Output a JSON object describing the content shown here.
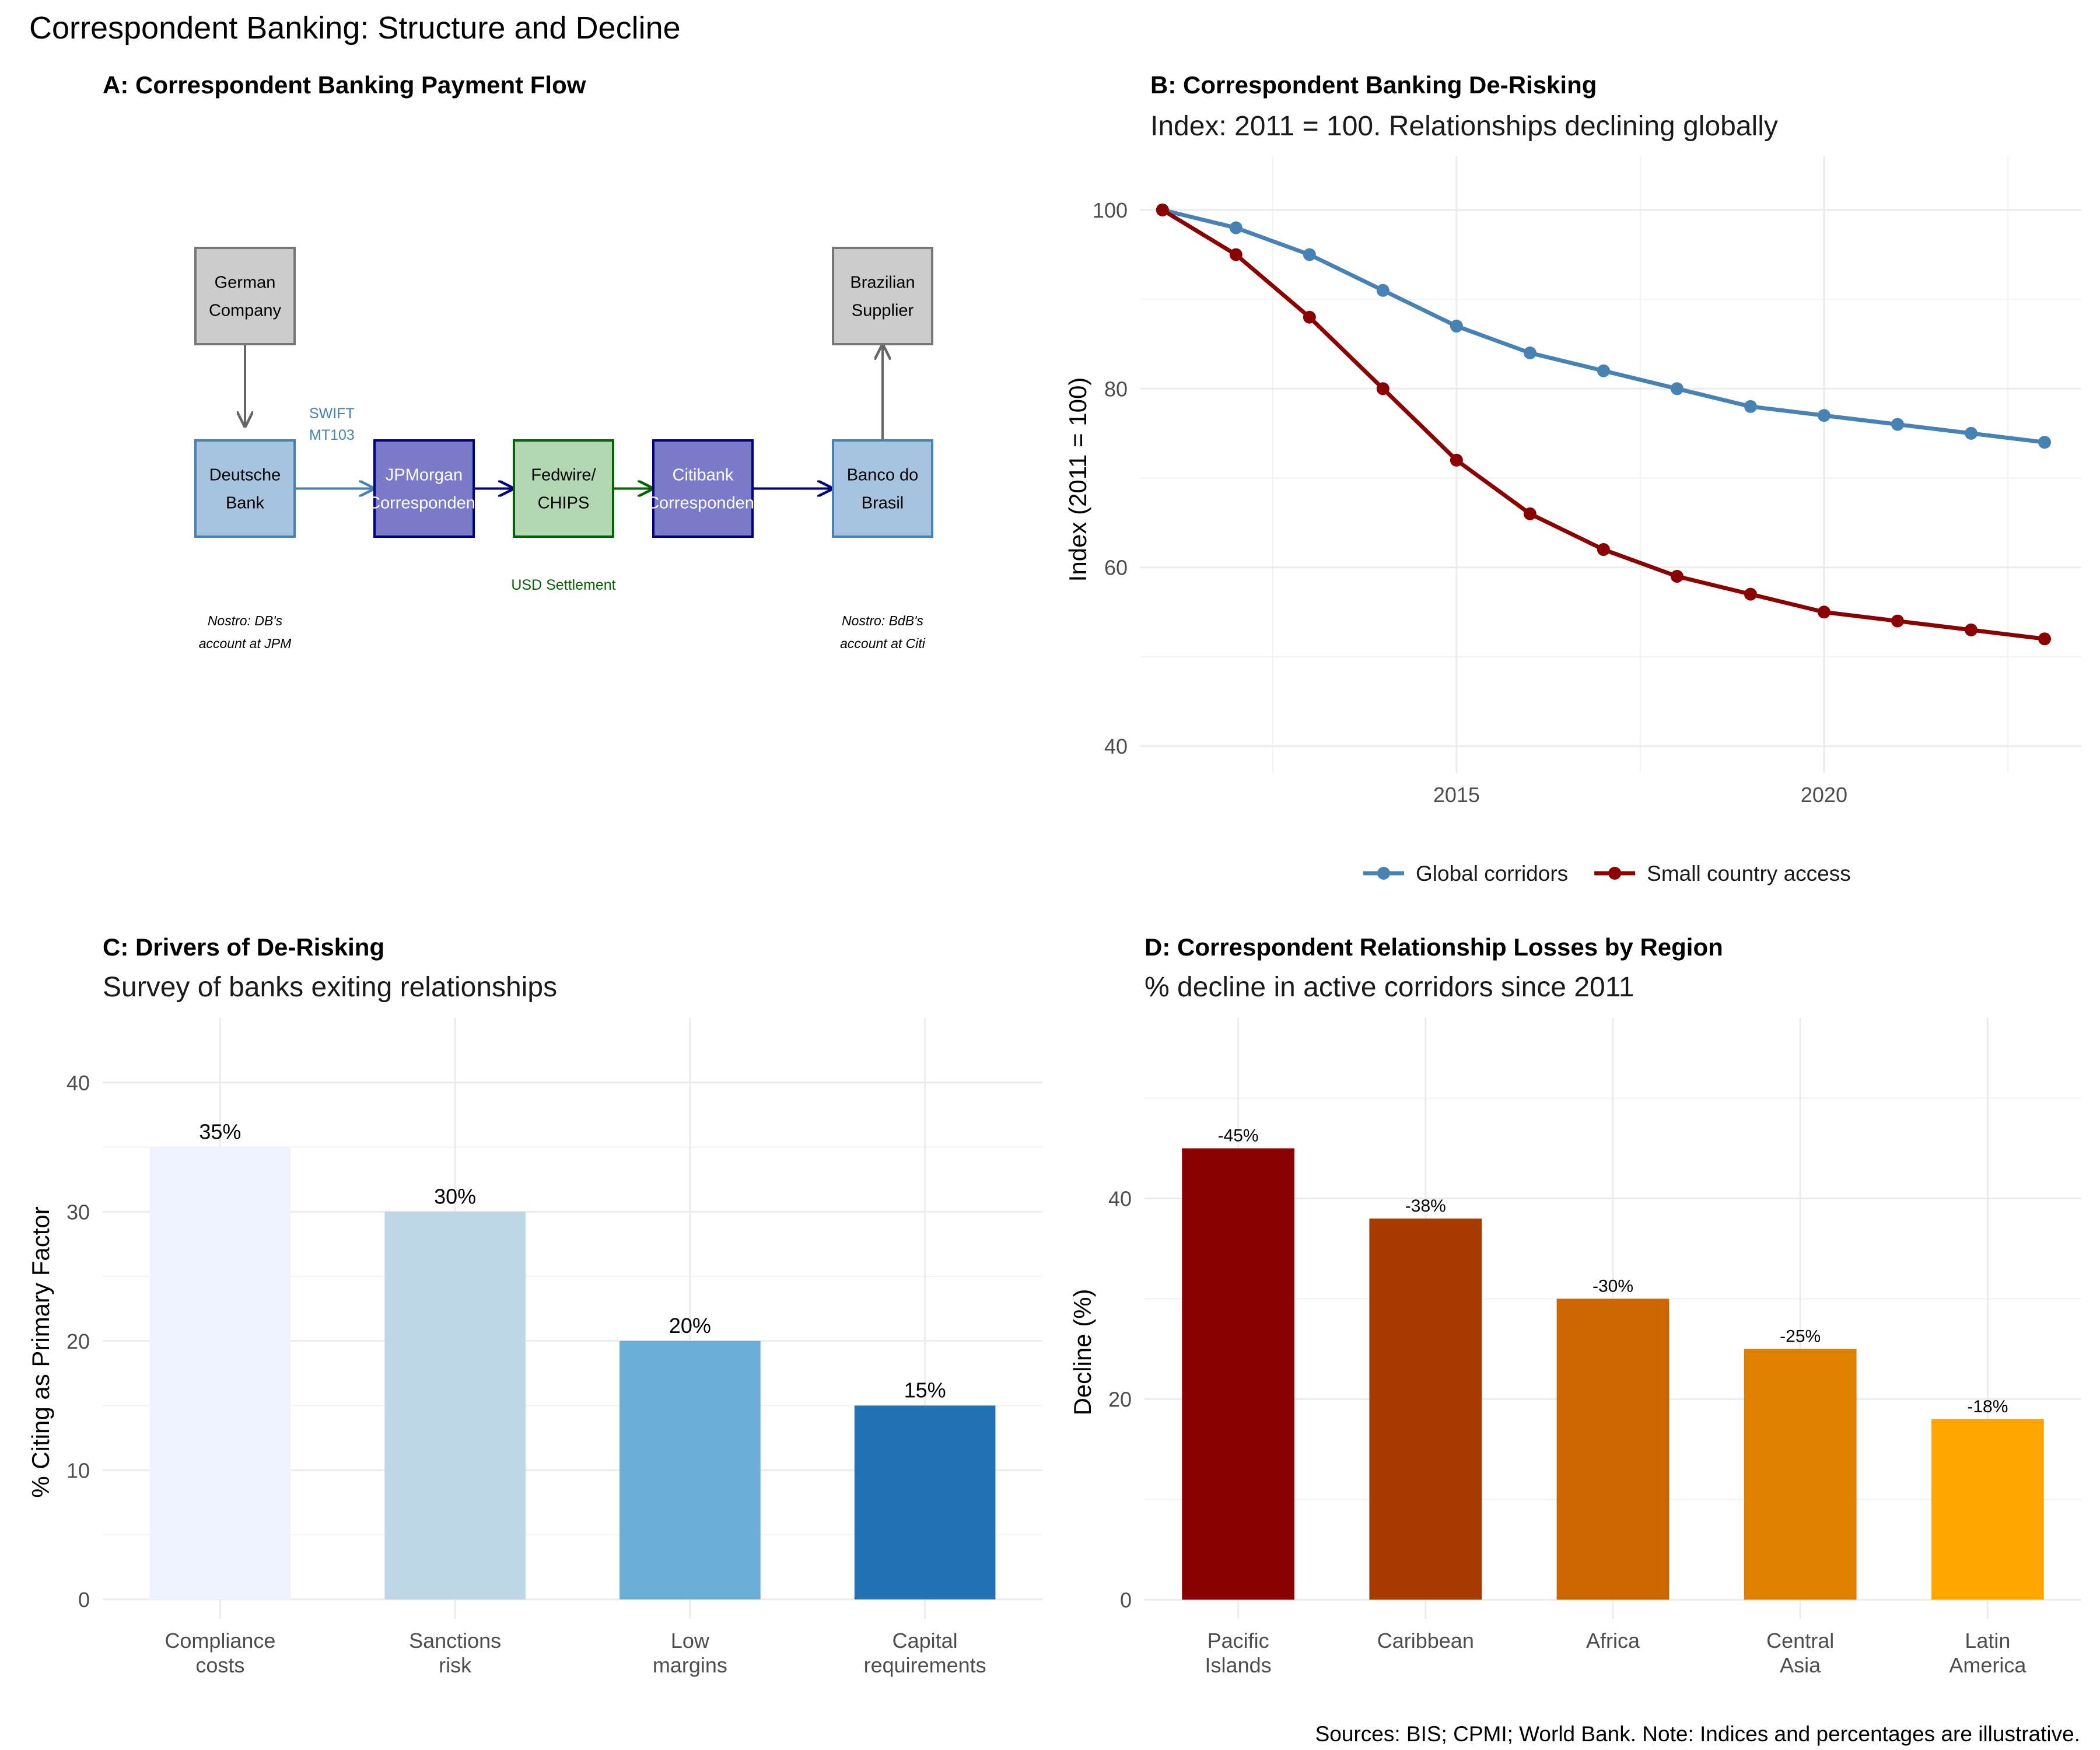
{
  "figure": {
    "title": "Correspondent Banking: Structure and Decline",
    "caption": "Sources: BIS; CPMI; World Bank. Note: Indices and percentages are illustrative."
  },
  "panel_a": {
    "title": "A: Correspondent Banking Payment Flow",
    "nodes": [
      {
        "id": "german",
        "lines": [
          "German",
          "Company"
        ],
        "fill": "#cccccc",
        "stroke": "#777777",
        "text_color": "#000000"
      },
      {
        "id": "brazilian",
        "lines": [
          "Brazilian",
          "Supplier"
        ],
        "fill": "#cccccc",
        "stroke": "#777777",
        "text_color": "#000000"
      },
      {
        "id": "deutsche",
        "lines": [
          "Deutsche",
          "Bank"
        ],
        "fill": "#a6c3df",
        "stroke": "#4682b4",
        "text_color": "#000000"
      },
      {
        "id": "jpmorgan",
        "lines": [
          "JPMorgan",
          "Correspondent"
        ],
        "fill": "#7b7bc9",
        "stroke": "#000080",
        "text_color": "#ffffff"
      },
      {
        "id": "fedwire",
        "lines": [
          "Fedwire/",
          "CHIPS"
        ],
        "fill": "#b3d6b3",
        "stroke": "#006400",
        "text_color": "#000000"
      },
      {
        "id": "citibank",
        "lines": [
          "Citibank",
          "Correspondent"
        ],
        "fill": "#7b7bc9",
        "stroke": "#000080",
        "text_color": "#ffffff"
      },
      {
        "id": "banco",
        "lines": [
          "Banco do",
          "Brasil"
        ],
        "fill": "#a6c3df",
        "stroke": "#4682b4",
        "text_color": "#000000"
      }
    ],
    "swift_label": [
      "SWIFT",
      "MT103"
    ],
    "settlement_label": "USD Settlement",
    "nostro_left": [
      "Nostro: DB's",
      "account at JPM"
    ],
    "nostro_right": [
      "Nostro: BdB's",
      "account at Citi"
    ],
    "colors": {
      "swift": "#4682b4",
      "navy": "#000080",
      "green": "#006400",
      "gray_arrow": "#666666"
    }
  },
  "chart_data": [
    {
      "type": "line",
      "title": "B: Correspondent Banking De-Risking",
      "subtitle": "Index: 2011 = 100. Relationships declining globally",
      "xlabel": "",
      "ylabel": "Index (2011 = 100)",
      "x": [
        2011,
        2012,
        2013,
        2014,
        2015,
        2016,
        2017,
        2018,
        2019,
        2020,
        2021,
        2022,
        2023
      ],
      "series": [
        {
          "name": "Global corridors",
          "color": "#4682b4",
          "values": [
            100,
            98,
            95,
            91,
            87,
            84,
            82,
            80,
            78,
            77,
            76,
            75,
            74
          ]
        },
        {
          "name": "Small country access",
          "color": "#8b0000",
          "values": [
            100,
            95,
            88,
            80,
            72,
            66,
            62,
            59,
            57,
            55,
            54,
            53,
            52
          ]
        }
      ],
      "xlim": [
        2010.7,
        2023.5
      ],
      "ylim": [
        37,
        106
      ],
      "xticks": [
        2015,
        2020
      ],
      "yticks": [
        40,
        60,
        80,
        100
      ],
      "legend_position": "bottom",
      "grid": true
    },
    {
      "type": "bar",
      "title": "C: Drivers of De-Risking",
      "subtitle": "Survey of banks exiting relationships",
      "xlabel": "",
      "ylabel": "% Citing as Primary Factor",
      "categories": [
        [
          "Compliance",
          "costs"
        ],
        [
          "Sanctions",
          "risk"
        ],
        [
          "Low",
          "margins"
        ],
        [
          "Capital",
          "requirements"
        ]
      ],
      "values": [
        35,
        30,
        20,
        15
      ],
      "value_labels": [
        "35%",
        "30%",
        "20%",
        "15%"
      ],
      "colors": [
        "#eff3ff",
        "#bdd7e7",
        "#6baed6",
        "#2171b5"
      ],
      "ylim": [
        -1.5,
        45
      ],
      "yticks": [
        0,
        10,
        20,
        30,
        40
      ],
      "grid": true
    },
    {
      "type": "bar",
      "title": "D: Correspondent Relationship Losses by Region",
      "subtitle": "% decline in active corridors since 2011",
      "xlabel": "",
      "ylabel": "Decline (%)",
      "categories": [
        [
          "Pacific",
          "Islands"
        ],
        [
          "Caribbean"
        ],
        [
          "Africa"
        ],
        [
          "Central",
          "Asia"
        ],
        [
          "Latin",
          "America"
        ]
      ],
      "values": [
        45,
        38,
        30,
        25,
        18
      ],
      "value_labels": [
        "-45%",
        "-38%",
        "-30%",
        "-25%",
        "-18%"
      ],
      "colors": [
        "#8b0000",
        "#a63a00",
        "#cc6600",
        "#e08000",
        "#ffa500"
      ],
      "ylim": [
        -1.9,
        58
      ],
      "yticks": [
        0,
        20,
        40
      ],
      "grid": true
    }
  ]
}
